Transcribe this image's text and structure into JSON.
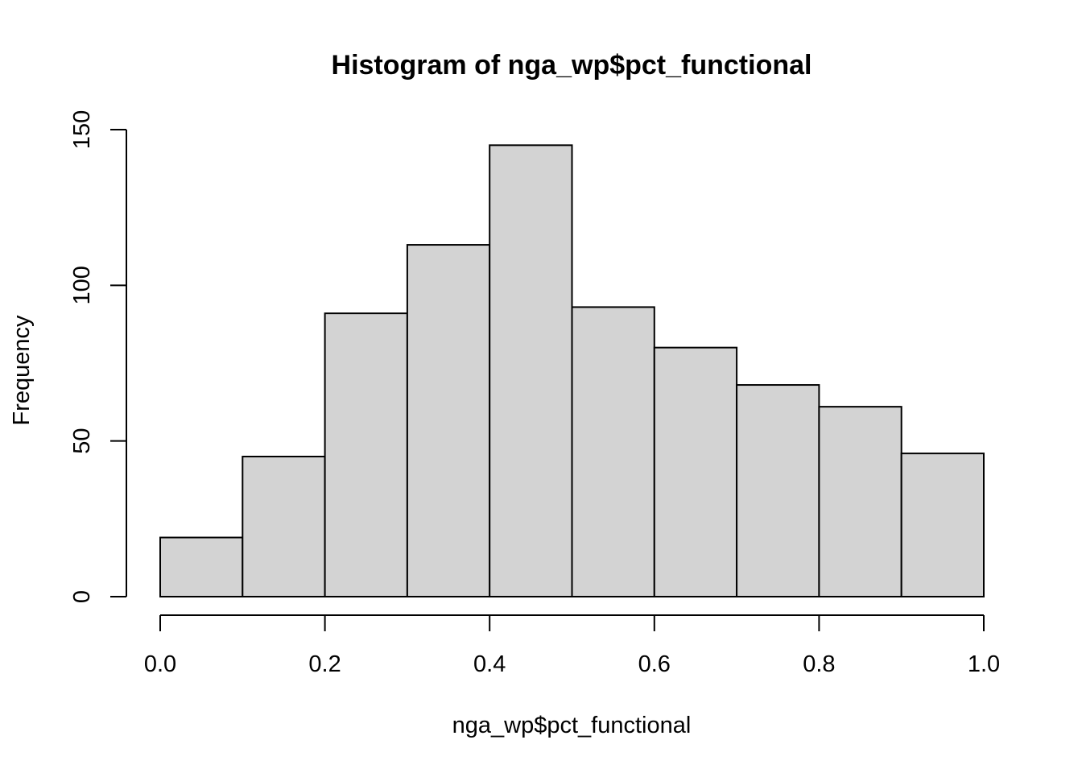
{
  "chart_data": {
    "type": "bar",
    "title": "Histogram of nga_wp$pct_functional",
    "xlabel": "nga_wp$pct_functional",
    "ylabel": "Frequency",
    "bins": [
      {
        "from": 0.0,
        "to": 0.1,
        "count": 19
      },
      {
        "from": 0.1,
        "to": 0.2,
        "count": 45
      },
      {
        "from": 0.2,
        "to": 0.3,
        "count": 91
      },
      {
        "from": 0.3,
        "to": 0.4,
        "count": 113
      },
      {
        "from": 0.4,
        "to": 0.5,
        "count": 145
      },
      {
        "from": 0.5,
        "to": 0.6,
        "count": 93
      },
      {
        "from": 0.6,
        "to": 0.7,
        "count": 80
      },
      {
        "from": 0.7,
        "to": 0.8,
        "count": 68
      },
      {
        "from": 0.8,
        "to": 0.9,
        "count": 61
      },
      {
        "from": 0.9,
        "to": 1.0,
        "count": 46
      }
    ],
    "xlim": [
      0.0,
      1.0
    ],
    "ylim": [
      0,
      150
    ],
    "x_ticks": [
      0.0,
      0.2,
      0.4,
      0.6,
      0.8,
      1.0
    ],
    "x_tick_labels": [
      "0.0",
      "0.2",
      "0.4",
      "0.6",
      "0.8",
      "1.0"
    ],
    "y_ticks": [
      0,
      50,
      100,
      150
    ],
    "y_tick_labels": [
      "0",
      "50",
      "100",
      "150"
    ],
    "bar_color": "#d3d3d3",
    "border_color": "#000000",
    "grid": false
  }
}
